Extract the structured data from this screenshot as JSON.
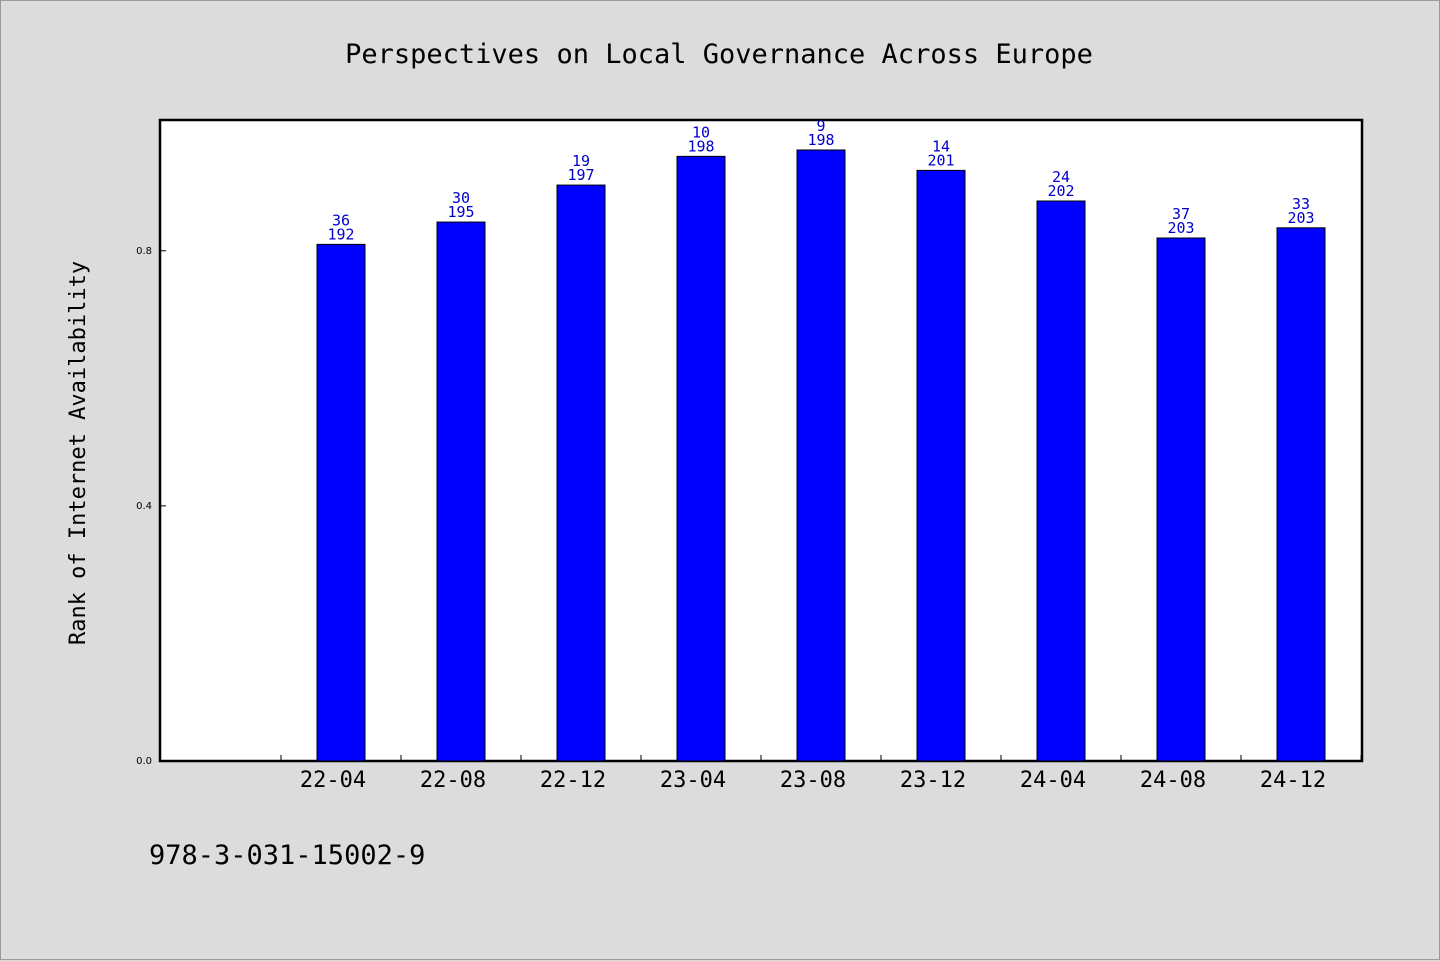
{
  "chart_data": {
    "type": "bar",
    "title": "Perspectives on Local Governance Across Europe",
    "xlabel": "",
    "ylabel": "Rank of Internet Availability",
    "categories": [
      "22-04",
      "22-08",
      "22-12",
      "23-04",
      "23-08",
      "23-12",
      "24-04",
      "24-08",
      "24-12"
    ],
    "values": [
      0.81,
      0.845,
      0.903,
      0.948,
      0.958,
      0.926,
      0.878,
      0.82,
      0.836
    ],
    "label_top": [
      "36",
      "30",
      "19",
      "10",
      "9",
      "14",
      "24",
      "37",
      "33"
    ],
    "label_bottom": [
      "192",
      "195",
      "197",
      "198",
      "198",
      "201",
      "202",
      "203",
      "203"
    ],
    "ylim": [
      0,
      1.005
    ],
    "yticks": [
      "0.0",
      "0.4",
      "0.8"
    ],
    "ytick_values": [
      0,
      0.4,
      0.8
    ],
    "bar_color": "#0000ff",
    "label_color": "#0000cc",
    "grid": false
  },
  "footer": {
    "isbn": "978-3-031-15002-9"
  }
}
